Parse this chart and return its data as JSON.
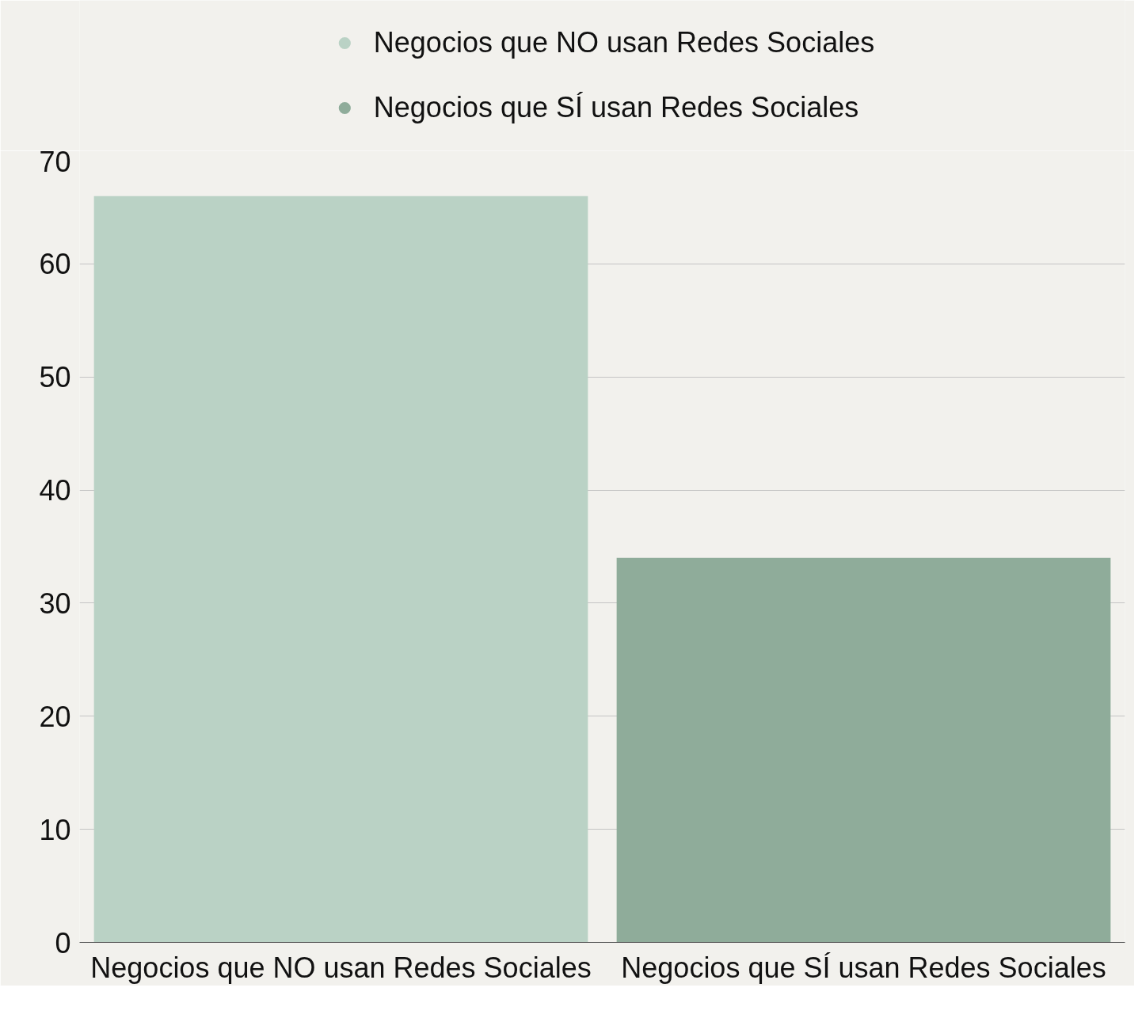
{
  "chart_data": {
    "type": "bar",
    "categories": [
      "Negocios que NO usan Redes Sociales",
      "Negocios que SÍ usan Redes Sociales"
    ],
    "series": [
      {
        "name": "Negocios que NO usan Redes Sociales",
        "color": "#bad2c5",
        "values": [
          66,
          null
        ]
      },
      {
        "name": "Negocios que SÍ usan Redes Sociales",
        "color": "#8fac9a",
        "values": [
          null,
          34
        ]
      }
    ],
    "ylim": [
      0,
      70
    ],
    "yticks": [
      0,
      10,
      20,
      30,
      40,
      50,
      60,
      70
    ],
    "grid": "y",
    "legend": "top"
  }
}
